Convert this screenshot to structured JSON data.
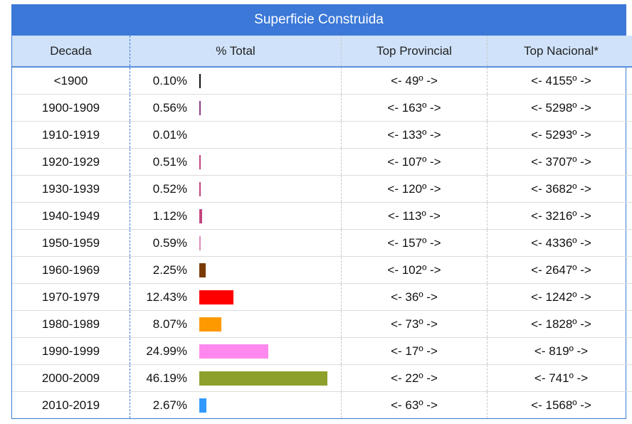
{
  "title": "Superficie Construida",
  "headers": {
    "decada": "Decada",
    "total": "% Total",
    "provincial": "Top Provincial",
    "nacional": "Top Nacional*"
  },
  "rows": [
    {
      "decada": "<1900",
      "pct": "0.10%",
      "value": 0.1,
      "color": "#111111",
      "provincial": "<- 49º ->",
      "nacional": "<- 4155º ->"
    },
    {
      "decada": "1900-1909",
      "pct": "0.56%",
      "value": 0.56,
      "color": "#8e3a8e",
      "provincial": "<- 163º ->",
      "nacional": "<- 5298º ->"
    },
    {
      "decada": "1910-1919",
      "pct": "0.01%",
      "value": 0.01,
      "color": "#ffffff",
      "provincial": "<- 133º ->",
      "nacional": "<- 5293º ->"
    },
    {
      "decada": "1920-1929",
      "pct": "0.51%",
      "value": 0.51,
      "color": "#c2457e",
      "provincial": "<- 107º ->",
      "nacional": "<- 3707º ->"
    },
    {
      "decada": "1930-1939",
      "pct": "0.52%",
      "value": 0.52,
      "color": "#c2457e",
      "provincial": "<- 120º ->",
      "nacional": "<- 3682º ->"
    },
    {
      "decada": "1940-1949",
      "pct": "1.12%",
      "value": 1.12,
      "color": "#c2457e",
      "provincial": "<- 113º ->",
      "nacional": "<- 3216º ->"
    },
    {
      "decada": "1950-1959",
      "pct": "0.59%",
      "value": 0.59,
      "color": "#e08abf",
      "provincial": "<- 157º ->",
      "nacional": "<- 4336º ->"
    },
    {
      "decada": "1960-1969",
      "pct": "2.25%",
      "value": 2.25,
      "color": "#7a3b00",
      "provincial": "<- 102º ->",
      "nacional": "<- 2647º ->"
    },
    {
      "decada": "1970-1979",
      "pct": "12.43%",
      "value": 12.43,
      "color": "#ff0000",
      "provincial": "<- 36º ->",
      "nacional": "<- 1242º ->"
    },
    {
      "decada": "1980-1989",
      "pct": "8.07%",
      "value": 8.07,
      "color": "#ff9900",
      "provincial": "<- 73º ->",
      "nacional": "<- 1828º ->"
    },
    {
      "decada": "1990-1999",
      "pct": "24.99%",
      "value": 24.99,
      "color": "#ff88ee",
      "provincial": "<- 17º ->",
      "nacional": "<- 819º ->"
    },
    {
      "decada": "2000-2009",
      "pct": "46.19%",
      "value": 46.19,
      "color": "#8da02b",
      "provincial": "<- 22º ->",
      "nacional": "<- 741º ->"
    },
    {
      "decada": "2010-2019",
      "pct": "2.67%",
      "value": 2.67,
      "color": "#3399ff",
      "provincial": "<- 63º ->",
      "nacional": "<- 1568º ->"
    }
  ]
}
